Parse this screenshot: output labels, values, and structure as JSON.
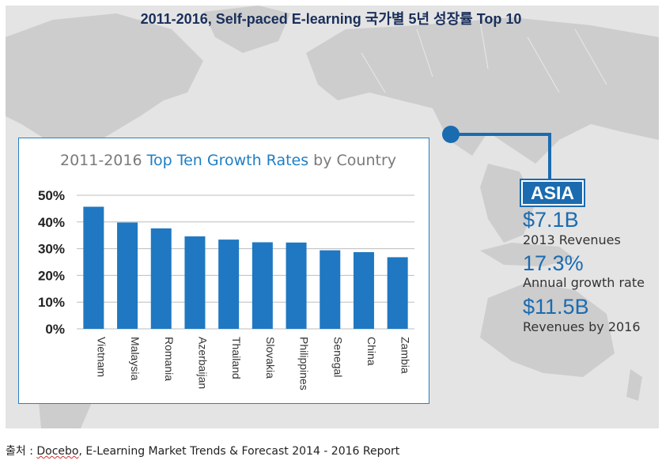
{
  "page_title": "2011-2016, Self-paced E-learning 국가별 5년 성장률 Top 10",
  "chart_data": {
    "type": "bar",
    "title_parts": [
      "2011-2016 ",
      "Top Ten Growth Rates",
      " by Country"
    ],
    "categories": [
      "Vietnam",
      "Malaysia",
      "Romania",
      "Azerbaijan",
      "Thailand",
      "Slovakia",
      "Philippines",
      "Senegal",
      "China",
      "Zambia"
    ],
    "values": [
      45.7,
      39.8,
      37.6,
      34.6,
      33.4,
      32.4,
      32.3,
      29.4,
      28.7,
      26.8
    ],
    "unit": "%",
    "ylim": [
      0,
      50
    ],
    "yticks": [
      "0%",
      "10%",
      "20%",
      "30%",
      "40%",
      "50%"
    ],
    "grid": true,
    "bar_color": "#1f78c1"
  },
  "region": {
    "label": "ASIA",
    "stats": [
      {
        "value": "$7.1",
        "unit": "B",
        "caption": "2013 Revenues"
      },
      {
        "value": "17.3",
        "unit": "%",
        "caption": "Annual growth rate"
      },
      {
        "value": "$11.5",
        "unit": "B",
        "caption": "Revenues by 2016"
      }
    ]
  },
  "source": {
    "prefix": "출처 : ",
    "name": "Docebo",
    "rest": ", E-Learning Market Trends & Forecast 2014 - 2016 Report"
  },
  "colors": {
    "accent": "#1b6bb0",
    "map_land": "#cfcfcf",
    "map_bg": "#e4e4e4",
    "title": "#1a2f5a"
  }
}
